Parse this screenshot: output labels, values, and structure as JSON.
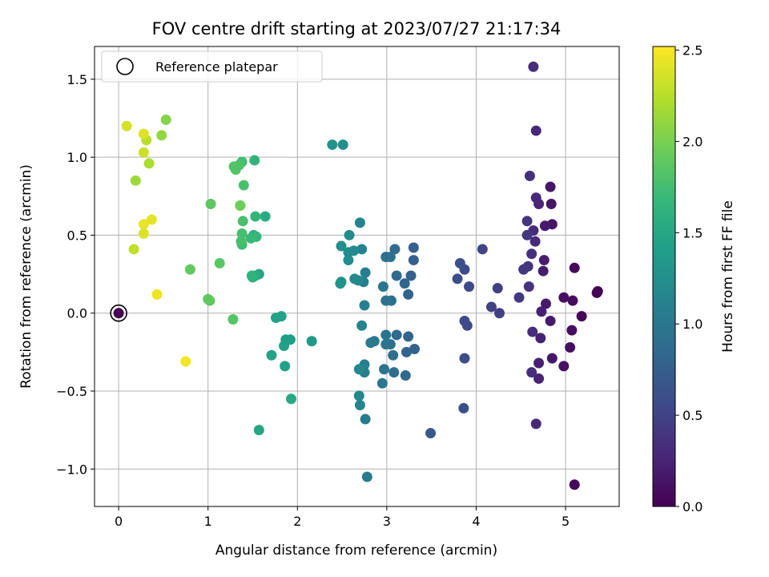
{
  "chart_data": {
    "type": "scatter",
    "title": "FOV centre drift starting at 2023/07/27 21:17:34",
    "xlabel": "Angular distance from reference (arcmin)",
    "ylabel": "Rotation from reference (arcmin)",
    "xlim": [
      -0.27,
      5.6
    ],
    "ylim": [
      -1.24,
      1.71
    ],
    "xticks": [
      0,
      1,
      2,
      3,
      4,
      5
    ],
    "xtick_labels": [
      "0",
      "1",
      "2",
      "3",
      "4",
      "5"
    ],
    "yticks": [
      -1.0,
      -0.5,
      0.0,
      0.5,
      1.0,
      1.5
    ],
    "ytick_labels": [
      "−1.0",
      "−0.5",
      "0.0",
      "0.5",
      "1.0",
      "1.5"
    ],
    "grid": true,
    "legend": {
      "position": "top-left",
      "entries": [
        "Reference platepar"
      ]
    },
    "reference_point": {
      "x": 0,
      "y": 0,
      "label": "Reference platepar"
    },
    "colorbar": {
      "label": "Hours from first FF file",
      "range": [
        0.0,
        2.52
      ],
      "ticks": [
        0.0,
        0.5,
        1.0,
        1.5,
        2.0,
        2.5
      ],
      "tick_labels": [
        "0.0",
        "0.5",
        "1.0",
        "1.5",
        "2.0",
        "2.5"
      ],
      "colormap": "viridis",
      "colormap_stops": [
        "#440154",
        "#482878",
        "#3e4a89",
        "#31688e",
        "#26828e",
        "#1f9e89",
        "#35b779",
        "#6ece58",
        "#b5de2b",
        "#fde725"
      ]
    },
    "point_color_key": "hours",
    "points": [
      {
        "x": 5.36,
        "y": 0.14,
        "hours": 0.0
      },
      {
        "x": 5.35,
        "y": 0.13,
        "hours": 0.01
      },
      {
        "x": 5.18,
        "y": -0.02,
        "hours": 0.03
      },
      {
        "x": 5.1,
        "y": -1.1,
        "hours": 0.05
      },
      {
        "x": 5.1,
        "y": 0.29,
        "hours": 0.06
      },
      {
        "x": 5.08,
        "y": 0.08,
        "hours": 0.08
      },
      {
        "x": 5.07,
        "y": -0.11,
        "hours": 0.09
      },
      {
        "x": 5.05,
        "y": -0.22,
        "hours": 0.1
      },
      {
        "x": 4.98,
        "y": 0.1,
        "hours": 0.11
      },
      {
        "x": 4.98,
        "y": -0.34,
        "hours": 0.12
      },
      {
        "x": 4.85,
        "y": 0.57,
        "hours": 0.13
      },
      {
        "x": 4.84,
        "y": 0.7,
        "hours": 0.14
      },
      {
        "x": 4.83,
        "y": 0.81,
        "hours": 0.15
      },
      {
        "x": 4.85,
        "y": -0.29,
        "hours": 0.16
      },
      {
        "x": 4.83,
        "y": -0.05,
        "hours": 0.17
      },
      {
        "x": 4.78,
        "y": 0.06,
        "hours": 0.18
      },
      {
        "x": 4.77,
        "y": 0.56,
        "hours": 0.19
      },
      {
        "x": 4.76,
        "y": 0.34,
        "hours": 0.2
      },
      {
        "x": 4.75,
        "y": 0.27,
        "hours": 0.21
      },
      {
        "x": 4.73,
        "y": 0.01,
        "hours": 0.22
      },
      {
        "x": 4.72,
        "y": -0.16,
        "hours": 0.23
      },
      {
        "x": 4.7,
        "y": -0.32,
        "hours": 0.24
      },
      {
        "x": 4.7,
        "y": -0.42,
        "hours": 0.25
      },
      {
        "x": 4.7,
        "y": 0.7,
        "hours": 0.26
      },
      {
        "x": 4.67,
        "y": 1.17,
        "hours": 0.27
      },
      {
        "x": 4.67,
        "y": 0.74,
        "hours": 0.28
      },
      {
        "x": 4.67,
        "y": -0.71,
        "hours": 0.29
      },
      {
        "x": 4.66,
        "y": 0.46,
        "hours": 0.3
      },
      {
        "x": 4.64,
        "y": 0.53,
        "hours": 0.31
      },
      {
        "x": 4.64,
        "y": 1.58,
        "hours": 0.32
      },
      {
        "x": 4.63,
        "y": -0.12,
        "hours": 0.33
      },
      {
        "x": 4.62,
        "y": 0.38,
        "hours": 0.34
      },
      {
        "x": 4.62,
        "y": -0.38,
        "hours": 0.35
      },
      {
        "x": 4.6,
        "y": 0.88,
        "hours": 0.36
      },
      {
        "x": 4.59,
        "y": 0.17,
        "hours": 0.37
      },
      {
        "x": 4.58,
        "y": 0.3,
        "hours": 0.38
      },
      {
        "x": 4.57,
        "y": 0.59,
        "hours": 0.39
      },
      {
        "x": 4.57,
        "y": 0.5,
        "hours": 0.4
      },
      {
        "x": 4.53,
        "y": 0.28,
        "hours": 0.41
      },
      {
        "x": 4.48,
        "y": 0.1,
        "hours": 0.42
      },
      {
        "x": 4.24,
        "y": 0.16,
        "hours": 0.46
      },
      {
        "x": 4.26,
        "y": 0.0,
        "hours": 0.47
      },
      {
        "x": 4.17,
        "y": 0.04,
        "hours": 0.49
      },
      {
        "x": 4.07,
        "y": 0.41,
        "hours": 0.52
      },
      {
        "x": 3.92,
        "y": 0.17,
        "hours": 0.55
      },
      {
        "x": 3.9,
        "y": -0.08,
        "hours": 0.56
      },
      {
        "x": 3.87,
        "y": 0.28,
        "hours": 0.57
      },
      {
        "x": 3.87,
        "y": -0.05,
        "hours": 0.58
      },
      {
        "x": 3.87,
        "y": -0.29,
        "hours": 0.59
      },
      {
        "x": 3.86,
        "y": -0.61,
        "hours": 0.6
      },
      {
        "x": 3.82,
        "y": 0.32,
        "hours": 0.61
      },
      {
        "x": 3.79,
        "y": 0.22,
        "hours": 0.62
      },
      {
        "x": 3.49,
        "y": -0.77,
        "hours": 0.7
      },
      {
        "x": 3.3,
        "y": 0.42,
        "hours": 0.76
      },
      {
        "x": 3.3,
        "y": 0.34,
        "hours": 0.77
      },
      {
        "x": 3.31,
        "y": -0.23,
        "hours": 0.78
      },
      {
        "x": 3.27,
        "y": 0.24,
        "hours": 0.79
      },
      {
        "x": 3.24,
        "y": 0.12,
        "hours": 0.8
      },
      {
        "x": 3.24,
        "y": -0.15,
        "hours": 0.81
      },
      {
        "x": 3.22,
        "y": -0.25,
        "hours": 0.82
      },
      {
        "x": 3.2,
        "y": 0.19,
        "hours": 0.83
      },
      {
        "x": 3.21,
        "y": -0.4,
        "hours": 0.84
      },
      {
        "x": 3.11,
        "y": -0.14,
        "hours": 0.86
      },
      {
        "x": 3.11,
        "y": 0.24,
        "hours": 0.87
      },
      {
        "x": 3.09,
        "y": 0.41,
        "hours": 0.88
      },
      {
        "x": 3.08,
        "y": -0.38,
        "hours": 0.89
      },
      {
        "x": 3.07,
        "y": -0.27,
        "hours": 0.9
      },
      {
        "x": 3.05,
        "y": 0.08,
        "hours": 0.91
      },
      {
        "x": 3.04,
        "y": -0.2,
        "hours": 0.92
      },
      {
        "x": 3.04,
        "y": 0.36,
        "hours": 0.93
      },
      {
        "x": 2.99,
        "y": 0.36,
        "hours": 0.94
      },
      {
        "x": 2.99,
        "y": 0.08,
        "hours": 0.95
      },
      {
        "x": 2.99,
        "y": -0.14,
        "hours": 0.96
      },
      {
        "x": 2.99,
        "y": -0.2,
        "hours": 0.97
      },
      {
        "x": 2.97,
        "y": -0.36,
        "hours": 0.98
      },
      {
        "x": 2.96,
        "y": 0.17,
        "hours": 0.99
      },
      {
        "x": 2.95,
        "y": -0.45,
        "hours": 1.0
      },
      {
        "x": 2.86,
        "y": -0.18,
        "hours": 1.02
      },
      {
        "x": 2.82,
        "y": -0.19,
        "hours": 1.03
      },
      {
        "x": 2.78,
        "y": -1.05,
        "hours": 1.05
      },
      {
        "x": 2.76,
        "y": -0.68,
        "hours": 1.06
      },
      {
        "x": 2.76,
        "y": 0.26,
        "hours": 1.07
      },
      {
        "x": 2.75,
        "y": -0.38,
        "hours": 1.08
      },
      {
        "x": 2.75,
        "y": -0.33,
        "hours": 1.09
      },
      {
        "x": 2.75,
        "y": 0.05,
        "hours": 1.1
      },
      {
        "x": 2.74,
        "y": 0.2,
        "hours": 1.11
      },
      {
        "x": 2.72,
        "y": 0.41,
        "hours": 1.12
      },
      {
        "x": 2.72,
        "y": -0.08,
        "hours": 1.13
      },
      {
        "x": 2.7,
        "y": 0.58,
        "hours": 1.14
      },
      {
        "x": 2.7,
        "y": -0.59,
        "hours": 1.15
      },
      {
        "x": 2.69,
        "y": -0.53,
        "hours": 1.16
      },
      {
        "x": 2.69,
        "y": -0.36,
        "hours": 1.17
      },
      {
        "x": 2.68,
        "y": 0.21,
        "hours": 1.18
      },
      {
        "x": 2.64,
        "y": 0.22,
        "hours": 1.19
      },
      {
        "x": 2.63,
        "y": 0.4,
        "hours": 1.2
      },
      {
        "x": 2.58,
        "y": 0.5,
        "hours": 1.21
      },
      {
        "x": 2.57,
        "y": 0.34,
        "hours": 1.22
      },
      {
        "x": 2.57,
        "y": 0.39,
        "hours": 1.23
      },
      {
        "x": 2.51,
        "y": 1.08,
        "hours": 1.25
      },
      {
        "x": 2.49,
        "y": 0.43,
        "hours": 1.26
      },
      {
        "x": 2.49,
        "y": 0.2,
        "hours": 1.27
      },
      {
        "x": 2.48,
        "y": 0.19,
        "hours": 1.28
      },
      {
        "x": 2.39,
        "y": 1.08,
        "hours": 1.3
      },
      {
        "x": 2.16,
        "y": -0.18,
        "hours": 1.35
      },
      {
        "x": 1.92,
        "y": -0.17,
        "hours": 1.4
      },
      {
        "x": 1.87,
        "y": -0.17,
        "hours": 1.41
      },
      {
        "x": 1.86,
        "y": -0.34,
        "hours": 1.42
      },
      {
        "x": 1.85,
        "y": -0.21,
        "hours": 1.43
      },
      {
        "x": 1.82,
        "y": -0.02,
        "hours": 1.44
      },
      {
        "x": 1.76,
        "y": -0.03,
        "hours": 1.45
      },
      {
        "x": 1.71,
        "y": -0.27,
        "hours": 1.46
      },
      {
        "x": 1.57,
        "y": -0.75,
        "hours": 1.48
      },
      {
        "x": 1.57,
        "y": 0.25,
        "hours": 1.5
      },
      {
        "x": 1.93,
        "y": -0.55,
        "hours": 1.52
      },
      {
        "x": 1.64,
        "y": 0.62,
        "hours": 1.55
      },
      {
        "x": 1.53,
        "y": 0.24,
        "hours": 1.56
      },
      {
        "x": 1.5,
        "y": 0.23,
        "hours": 1.58
      },
      {
        "x": 1.51,
        "y": 0.5,
        "hours": 1.6
      },
      {
        "x": 1.49,
        "y": 0.24,
        "hours": 1.62
      },
      {
        "x": 1.52,
        "y": 0.98,
        "hours": 1.64
      },
      {
        "x": 1.53,
        "y": 0.62,
        "hours": 1.66
      },
      {
        "x": 1.54,
        "y": 0.49,
        "hours": 1.68
      },
      {
        "x": 1.48,
        "y": 0.48,
        "hours": 1.7
      },
      {
        "x": 1.38,
        "y": 0.44,
        "hours": 1.72
      },
      {
        "x": 1.38,
        "y": 0.97,
        "hours": 1.74
      },
      {
        "x": 1.38,
        "y": 0.51,
        "hours": 1.76
      },
      {
        "x": 1.37,
        "y": 0.46,
        "hours": 1.77
      },
      {
        "x": 1.39,
        "y": 0.59,
        "hours": 1.78
      },
      {
        "x": 1.4,
        "y": 0.82,
        "hours": 1.79
      },
      {
        "x": 1.35,
        "y": 0.95,
        "hours": 1.8
      },
      {
        "x": 1.31,
        "y": 0.92,
        "hours": 1.82
      },
      {
        "x": 1.29,
        "y": 0.94,
        "hours": 1.83
      },
      {
        "x": 1.28,
        "y": -0.04,
        "hours": 1.84
      },
      {
        "x": 1.36,
        "y": 0.69,
        "hours": 1.85
      },
      {
        "x": 1.13,
        "y": 0.32,
        "hours": 1.86
      },
      {
        "x": 1.03,
        "y": 0.7,
        "hours": 1.87
      },
      {
        "x": 1.02,
        "y": 0.08,
        "hours": 1.88
      },
      {
        "x": 1.0,
        "y": 0.09,
        "hours": 1.89
      },
      {
        "x": 0.8,
        "y": 0.28,
        "hours": 1.9
      },
      {
        "x": 1.36,
        "y": 0.69,
        "hours": 1.95
      },
      {
        "x": 0.53,
        "y": 1.24,
        "hours": 2.05
      },
      {
        "x": 0.48,
        "y": 1.14,
        "hours": 2.1
      },
      {
        "x": 0.19,
        "y": 0.85,
        "hours": 2.15
      },
      {
        "x": 0.34,
        "y": 0.96,
        "hours": 2.2
      },
      {
        "x": 0.31,
        "y": 1.11,
        "hours": 2.25
      },
      {
        "x": 0.17,
        "y": 0.41,
        "hours": 2.28
      },
      {
        "x": 0.28,
        "y": 1.03,
        "hours": 2.32
      },
      {
        "x": 0.09,
        "y": 1.2,
        "hours": 2.35
      },
      {
        "x": 0.28,
        "y": 0.51,
        "hours": 2.38
      },
      {
        "x": 0.28,
        "y": 1.15,
        "hours": 2.4
      },
      {
        "x": 0.37,
        "y": 0.6,
        "hours": 2.42
      },
      {
        "x": 0.28,
        "y": 0.57,
        "hours": 2.44
      },
      {
        "x": 0.43,
        "y": 0.12,
        "hours": 2.46
      },
      {
        "x": 0.75,
        "y": -0.31,
        "hours": 2.48
      },
      {
        "x": 0.0,
        "y": 0.0,
        "hours": 0.0
      }
    ]
  }
}
